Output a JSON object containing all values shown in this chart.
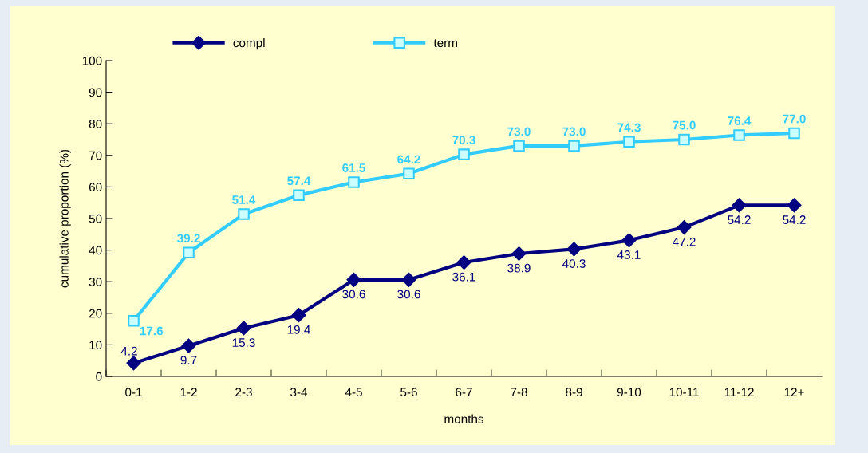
{
  "chart_data": {
    "type": "line",
    "xlabel": "months",
    "ylabel": "cumulative proportion (%)",
    "categories": [
      "0-1",
      "1-2",
      "2-3",
      "3-4",
      "4-5",
      "5-6",
      "6-7",
      "7-8",
      "8-9",
      "9-10",
      "10-11",
      "11-12",
      "12+"
    ],
    "series": [
      {
        "name": "compl",
        "color": "#000080",
        "marker": "diamond",
        "values": [
          4.2,
          9.7,
          15.3,
          19.4,
          30.6,
          30.6,
          36.1,
          38.9,
          40.3,
          43.1,
          47.2,
          54.2,
          54.2
        ],
        "value_labels": [
          "4.2",
          "9.7",
          "15.3",
          "19.4",
          "30.6",
          "30.6",
          "36.1",
          "38.9",
          "40.3",
          "43.1",
          "47.2",
          "54.2",
          "54.2"
        ]
      },
      {
        "name": "term",
        "color": "#33ccff",
        "marker": "square",
        "values": [
          17.6,
          39.2,
          51.4,
          57.4,
          61.5,
          64.2,
          70.3,
          73.0,
          73.0,
          74.3,
          75.0,
          76.4,
          77.0
        ],
        "value_labels": [
          "17.6",
          "39.2",
          "51.4",
          "57.4",
          "61.5",
          "64.2",
          "70.3",
          "73.0",
          "73.0",
          "74.3",
          "75.0",
          "76.4",
          "77.0"
        ]
      }
    ],
    "ylim": [
      0,
      100
    ],
    "yticks": [
      0,
      10,
      20,
      30,
      40,
      50,
      60,
      70,
      80,
      90,
      100
    ],
    "grid": false,
    "legend": "top",
    "line_style": "solid"
  }
}
